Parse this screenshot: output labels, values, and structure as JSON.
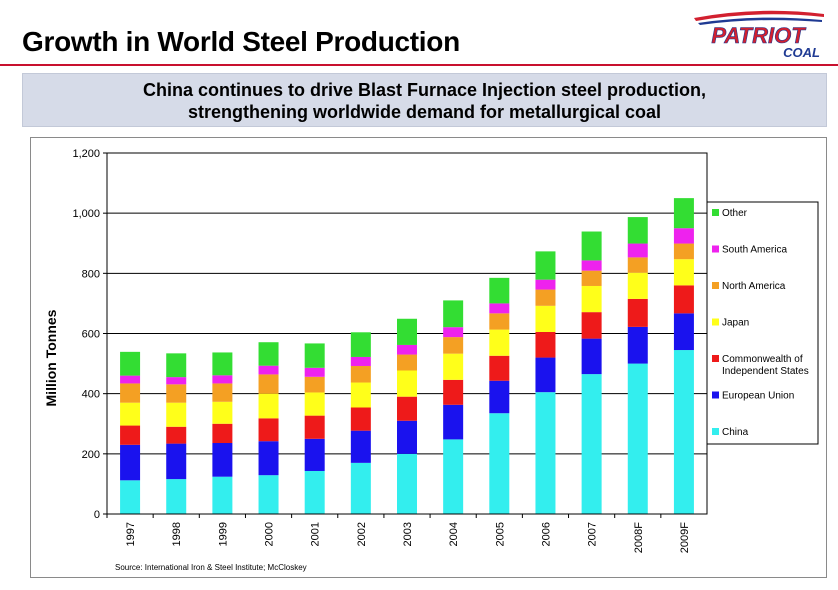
{
  "header": {
    "title": "Growth in World Steel Production",
    "logo_line1": "PATRIOT",
    "logo_line2": "COAL"
  },
  "subtitle": {
    "line1": "China continues to drive Blast Furnace Injection steel production,",
    "line2": "strengthening worldwide demand for metallurgical coal"
  },
  "colors": {
    "title_rule": "#c8102e",
    "logo_red": "#d2202f",
    "logo_blue": "#1f3a93"
  },
  "chart_data": {
    "type": "bar",
    "stacked": true,
    "categories": [
      "1997",
      "1998",
      "1999",
      "2000",
      "2001",
      "2002",
      "2003",
      "2004",
      "2005",
      "2006",
      "2007",
      "2008F",
      "2009F"
    ],
    "ylabel": "Million Tonnes",
    "ylim": [
      0,
      1200
    ],
    "yticks": [
      0,
      200,
      400,
      600,
      800,
      1000,
      1200
    ],
    "ytick_labels": [
      "0",
      "200",
      "400",
      "600",
      "800",
      "1,000",
      "1,200"
    ],
    "grid": true,
    "legend_position": "right",
    "series": [
      {
        "name": "China",
        "color": "#33eeee",
        "values": [
          112,
          116,
          124,
          129,
          143,
          170,
          200,
          248,
          335,
          405,
          465,
          500,
          545
        ]
      },
      {
        "name": "European Union",
        "color": "#1a12ee",
        "values": [
          118,
          118,
          112,
          113,
          107,
          107,
          110,
          115,
          108,
          115,
          118,
          122,
          122
        ]
      },
      {
        "name": "Commonwealth of Independent States",
        "color": "#ee1a1a",
        "values": [
          64,
          56,
          64,
          76,
          77,
          77,
          80,
          83,
          83,
          85,
          88,
          93,
          93
        ]
      },
      {
        "name": "Japan",
        "color": "#ffff1a",
        "values": [
          76,
          80,
          73,
          82,
          77,
          83,
          87,
          87,
          87,
          87,
          87,
          87,
          87
        ]
      },
      {
        "name": "North America",
        "color": "#f4a023",
        "values": [
          64,
          61,
          61,
          64,
          52,
          55,
          53,
          55,
          54,
          54,
          51,
          51,
          52
        ]
      },
      {
        "name": "South America",
        "color": "#ee22ee",
        "values": [
          26,
          24,
          27,
          29,
          30,
          30,
          32,
          33,
          33,
          33,
          34,
          46,
          51
        ]
      },
      {
        "name": "Other",
        "color": "#33dd33",
        "values": [
          79,
          79,
          76,
          78,
          81,
          82,
          87,
          89,
          85,
          94,
          96,
          88,
          100
        ]
      }
    ],
    "legend_labels": [
      "Other",
      "South America",
      "North America",
      "Japan",
      "Commonwealth of|Independent States",
      "European Union",
      "China"
    ],
    "source": "Source:   International Iron & Steel Institute; McCloskey"
  }
}
